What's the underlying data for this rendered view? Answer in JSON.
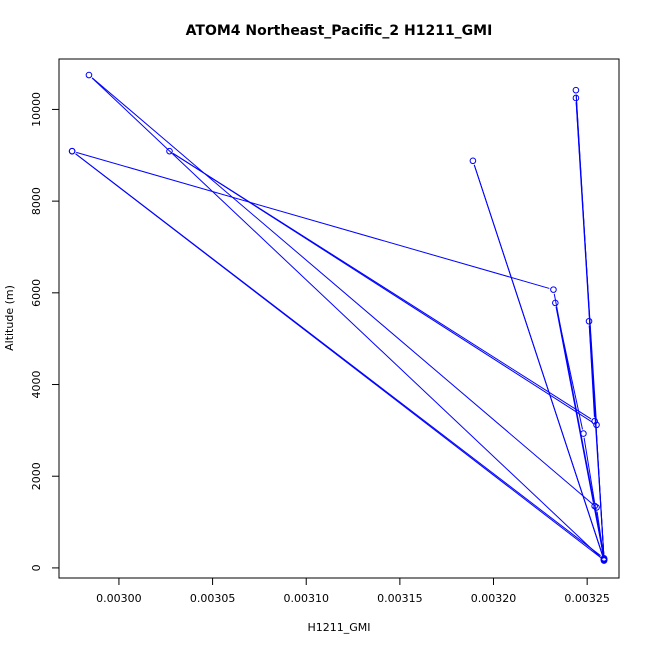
{
  "chart_data": {
    "type": "line",
    "title": "ATOM4 Northeast_Pacific_2 H1211_GMI",
    "xlabel": "H1211_GMI",
    "ylabel": "Altitude (m)",
    "xlim": [
      0.002968,
      0.003267
    ],
    "ylim": [
      -220,
      11100
    ],
    "x_ticks": [
      0.003,
      0.00305,
      0.0031,
      0.00315,
      0.0032,
      0.00325
    ],
    "x_tick_labels": [
      "0.00300",
      "0.00305",
      "0.00310",
      "0.00315",
      "0.00320",
      "0.00325"
    ],
    "y_ticks": [
      0,
      2000,
      4000,
      6000,
      8000,
      10000
    ],
    "y_tick_labels": [
      "0",
      "2000",
      "4000",
      "6000",
      "8000",
      "10000"
    ],
    "grid": false,
    "color": "#0000ff",
    "series": [
      {
        "points": [
          {
            "x": 0.003259,
            "y": 190
          },
          {
            "x": 0.003255,
            "y": 1320
          },
          {
            "x": 0.002984,
            "y": 10750
          },
          {
            "x": 0.003259,
            "y": 160
          },
          {
            "x": 0.003248,
            "y": 2930
          },
          {
            "x": 0.003233,
            "y": 5780
          },
          {
            "x": 0.003259,
            "y": 200
          },
          {
            "x": 0.003244,
            "y": 10420
          },
          {
            "x": 0.003259,
            "y": 180
          },
          {
            "x": 0.003189,
            "y": 8880
          },
          {
            "x": 0.003259,
            "y": 170
          },
          {
            "x": 0.002975,
            "y": 9090
          },
          {
            "x": 0.003259,
            "y": 210
          },
          {
            "x": 0.003244,
            "y": 10250
          },
          {
            "x": 0.003255,
            "y": 3120
          },
          {
            "x": 0.003027,
            "y": 9090
          },
          {
            "x": 0.003254,
            "y": 3200
          },
          {
            "x": 0.003251,
            "y": 5380
          },
          {
            "x": 0.003259,
            "y": 190
          },
          {
            "x": 0.003254,
            "y": 1350
          },
          {
            "x": 0.003232,
            "y": 6070
          },
          {
            "x": 0.002975,
            "y": 9090
          }
        ]
      }
    ]
  }
}
